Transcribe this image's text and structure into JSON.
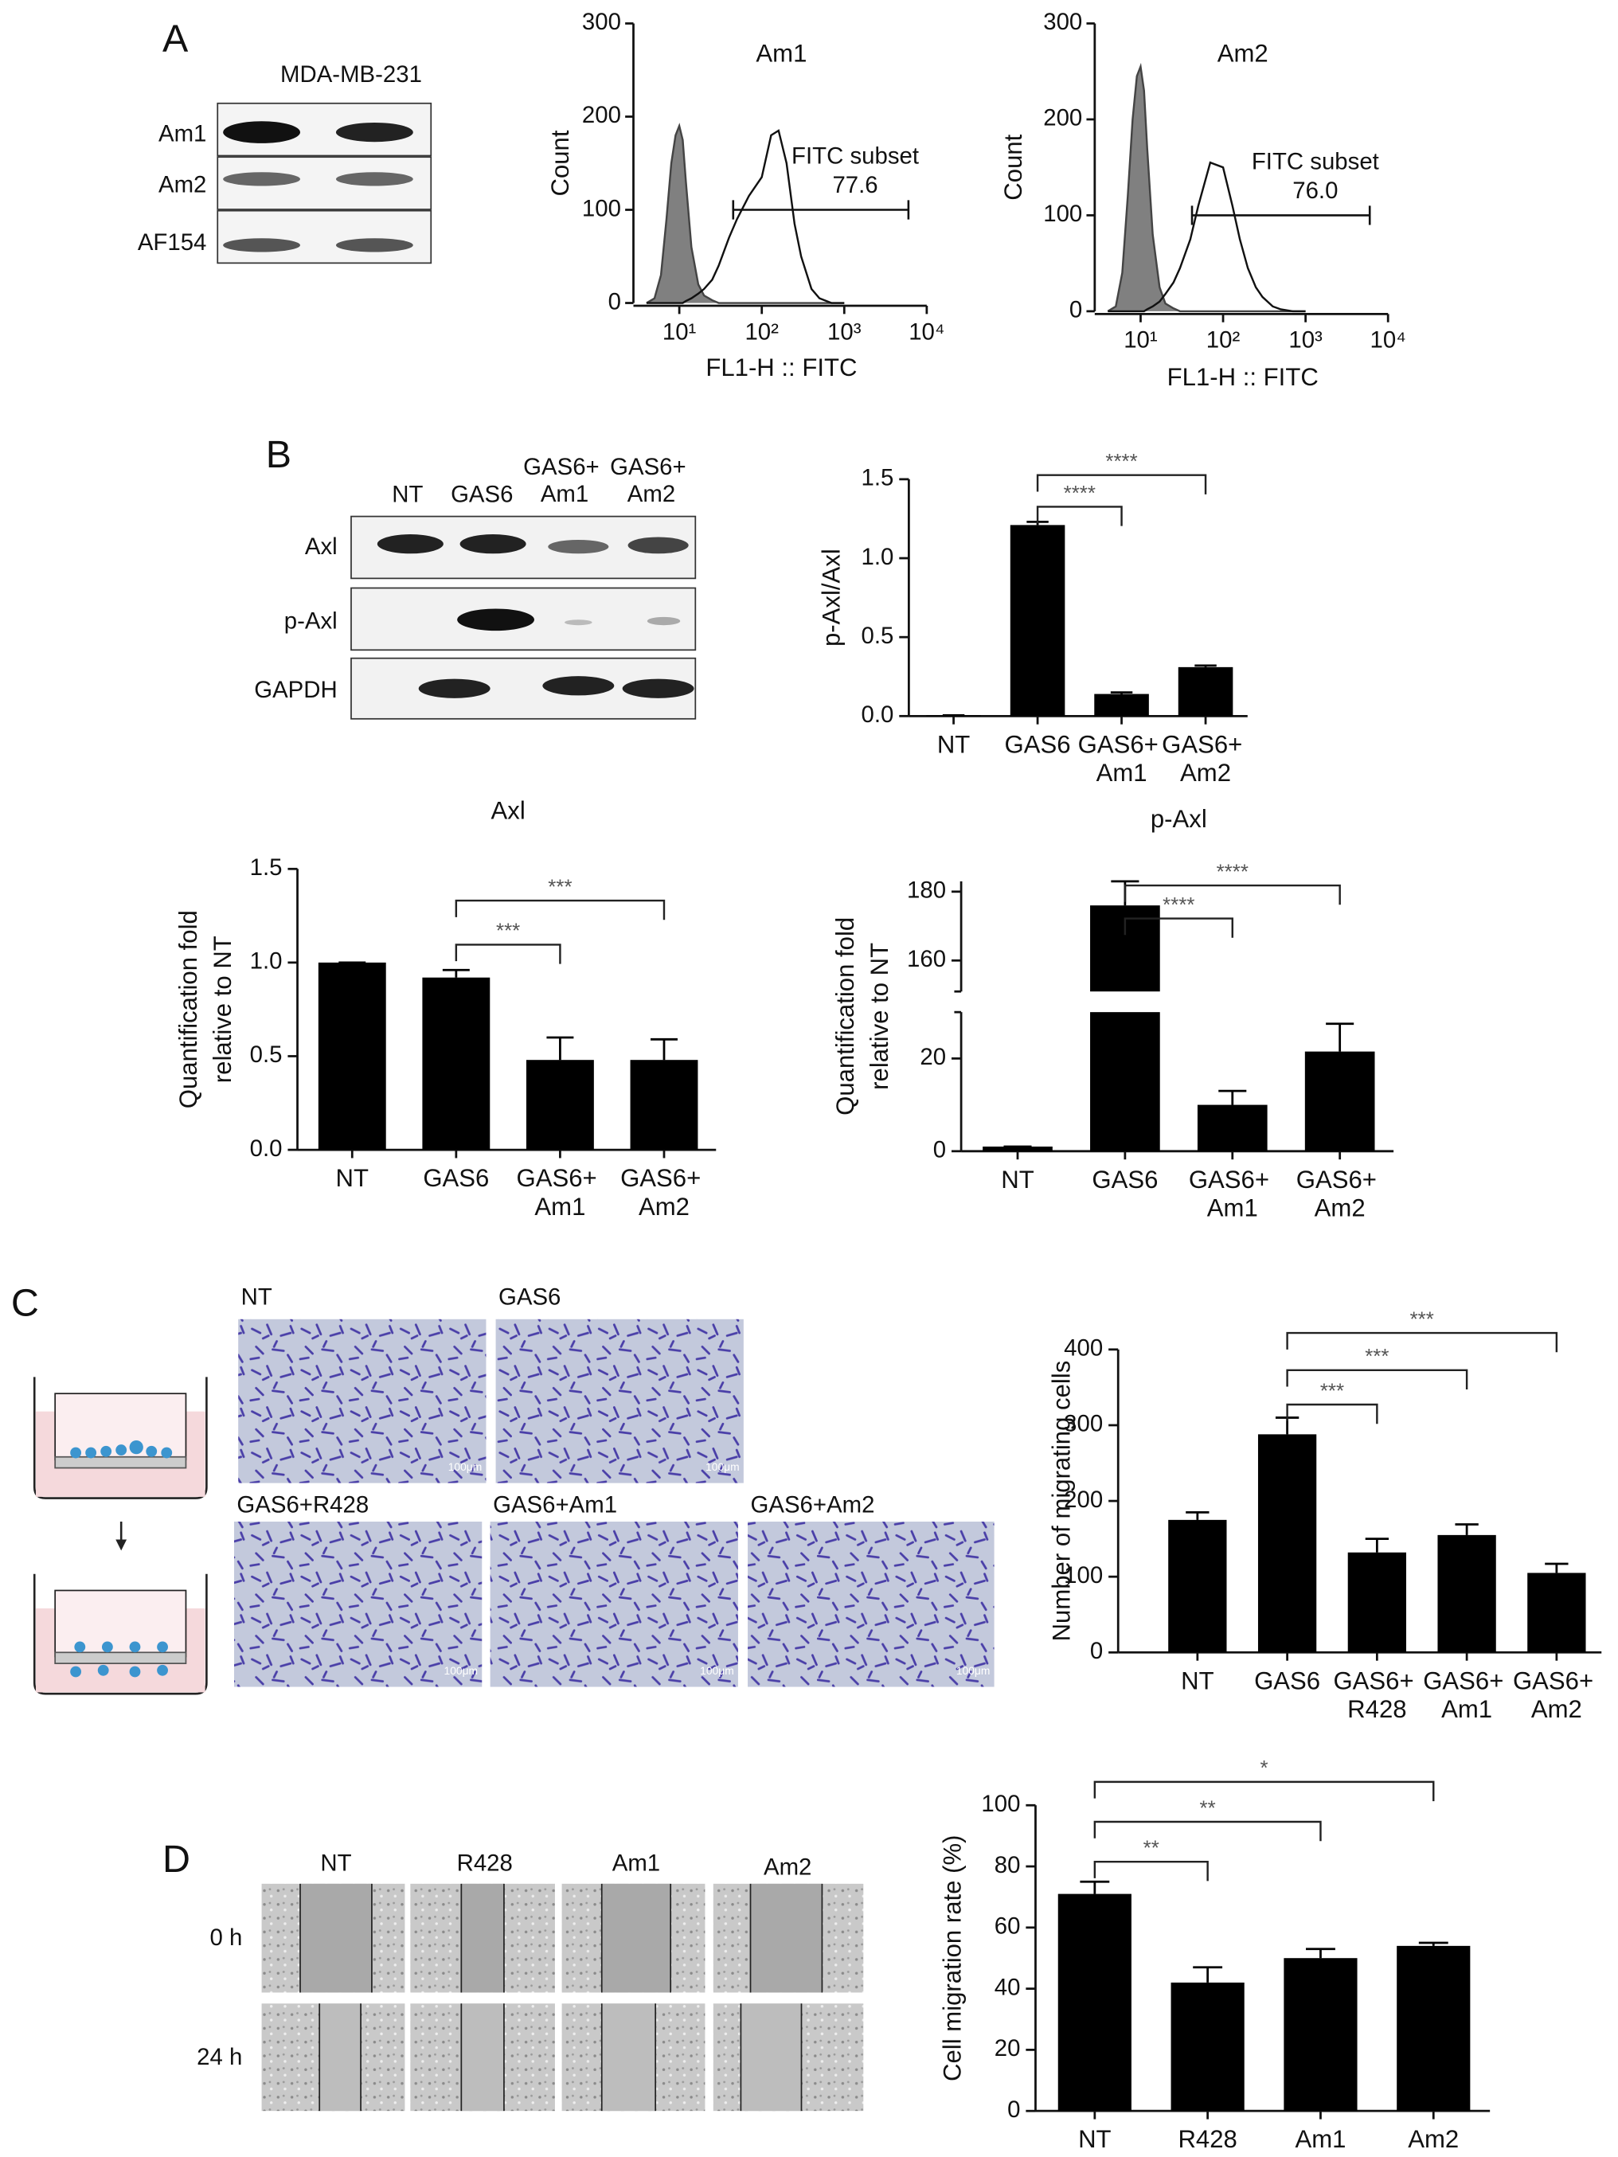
{
  "panel_labels": [
    "A",
    "B",
    "C",
    "D"
  ],
  "blot_a": {
    "title": "MDA-MB-231",
    "rows": [
      "Am1",
      "Am2",
      "AF154"
    ]
  },
  "blot_b": {
    "columns": [
      "NT",
      "GAS6",
      "GAS6+ Am1",
      "GAS6+ Am2"
    ],
    "rows": [
      "Axl",
      "p-Axl",
      "GAPDH"
    ]
  },
  "transwell_images": {
    "labels": [
      "NT",
      "GAS6",
      "GAS6+R428",
      "GAS6+Am1",
      "GAS6+Am2"
    ],
    "scale_bar": "100μm"
  },
  "wound_images": {
    "columns": [
      "NT",
      "R428",
      "Am1",
      "Am2"
    ],
    "rows": [
      "0 h",
      "24 h"
    ]
  },
  "chart_data": [
    {
      "type": "area",
      "title": "Am1",
      "xlabel": "FL1-H :: FITC",
      "ylabel": "Count",
      "xlog": true,
      "xlim": [
        3,
        10000
      ],
      "xticks": [
        {
          "value": 10,
          "label": "10¹"
        },
        {
          "value": 100,
          "label": "10²"
        },
        {
          "value": 1000,
          "label": "10³"
        },
        {
          "value": 10000,
          "label": "10⁴"
        }
      ],
      "ylim": [
        0,
        300
      ],
      "yticks": [
        0,
        100,
        200,
        300
      ],
      "x": [
        4,
        5,
        6,
        7,
        8,
        9,
        10,
        11,
        12,
        14,
        17,
        20,
        25,
        30,
        40,
        50,
        70,
        100,
        130,
        160,
        200,
        250,
        300,
        400,
        500,
        700,
        1000
      ],
      "series": [
        {
          "color": "#808080",
          "fill": true,
          "values": [
            0,
            5,
            30,
            90,
            150,
            180,
            190,
            175,
            130,
            60,
            20,
            8,
            3,
            0,
            0,
            0,
            0,
            0,
            0,
            0,
            0,
            0,
            0,
            0,
            0,
            0,
            0
          ]
        },
        {
          "color": "#111111",
          "fill": false,
          "values": [
            0,
            0,
            0,
            0,
            0,
            0,
            0,
            0,
            2,
            5,
            10,
            15,
            25,
            40,
            70,
            90,
            115,
            135,
            180,
            185,
            150,
            85,
            50,
            15,
            5,
            0,
            0
          ]
        }
      ],
      "gate": {
        "x": [
          45,
          6000
        ],
        "y": 100,
        "label": "FITC subset",
        "value": 77.6
      }
    },
    {
      "type": "area",
      "title": "Am2",
      "xlabel": "FL1-H :: FITC",
      "ylabel": "Count",
      "xlog": true,
      "xlim": [
        3,
        10000
      ],
      "xticks": [
        {
          "value": 10,
          "label": "10¹"
        },
        {
          "value": 100,
          "label": "10²"
        },
        {
          "value": 1000,
          "label": "10³"
        },
        {
          "value": 10000,
          "label": "10⁴"
        }
      ],
      "ylim": [
        0,
        300
      ],
      "yticks": [
        0,
        100,
        200,
        300
      ],
      "x": [
        4,
        5,
        6,
        7,
        8,
        9,
        10,
        11,
        12,
        14,
        17,
        20,
        25,
        30,
        40,
        50,
        70,
        100,
        130,
        160,
        200,
        250,
        300,
        400,
        500,
        700,
        1000
      ],
      "series": [
        {
          "color": "#808080",
          "fill": true,
          "values": [
            0,
            5,
            40,
            120,
            200,
            245,
            255,
            230,
            170,
            80,
            25,
            8,
            3,
            0,
            0,
            0,
            0,
            0,
            0,
            0,
            0,
            0,
            0,
            0,
            0,
            0,
            0
          ]
        },
        {
          "color": "#111111",
          "fill": false,
          "values": [
            0,
            0,
            0,
            0,
            0,
            0,
            0,
            0,
            2,
            5,
            10,
            18,
            30,
            45,
            75,
            110,
            155,
            150,
            110,
            75,
            45,
            25,
            15,
            5,
            2,
            0,
            0
          ]
        }
      ],
      "gate": {
        "x": [
          42,
          6000
        ],
        "y": 100,
        "label": "FITC subset",
        "value": 76,
        "value_label": "76.0"
      }
    },
    {
      "type": "bar",
      "ylabel": [
        "p-Axl/Axl"
      ],
      "color": "#000000",
      "categories": [
        "NT",
        "GAS6",
        "GAS6+ Am1",
        "GAS6+ Am2"
      ],
      "values": [
        0.005,
        1.21,
        0.14,
        0.31
      ],
      "errors": [
        0,
        0.02,
        0.01,
        0.01
      ],
      "ylim": [
        0,
        1.5
      ],
      "yticks": [
        {
          "value": 0,
          "label": "0.0"
        },
        0.5,
        {
          "value": 1,
          "label": "1.0"
        },
        1.5
      ],
      "significance": [
        {
          "from": "GAS6",
          "to": "GAS6+ Am1",
          "label": "****"
        },
        {
          "from": "GAS6",
          "to": "GAS6+ Am2",
          "label": "****"
        }
      ]
    },
    {
      "type": "bar",
      "title": "Axl",
      "ylabel": [
        "Quantification fold",
        "relative to NT"
      ],
      "color": "#000000",
      "categories": [
        "NT",
        "GAS6",
        "GAS6+ Am1",
        "GAS6+ Am2"
      ],
      "values": [
        1,
        0.92,
        0.48,
        0.48
      ],
      "errors": [
        0,
        0.04,
        0.12,
        0.11
      ],
      "ylim": [
        0,
        1.5
      ],
      "yticks": [
        {
          "value": 0,
          "label": "0.0"
        },
        0.5,
        {
          "value": 1,
          "label": "1.0"
        },
        1.5
      ],
      "significance": [
        {
          "from": "GAS6",
          "to": "GAS6+ Am1",
          "label": "***"
        },
        {
          "from": "GAS6",
          "to": "GAS6+ Am2",
          "label": "***"
        }
      ]
    },
    {
      "type": "bar",
      "title": "p-Axl",
      "ylabel": [
        "Quantification fold",
        "relative to NT"
      ],
      "color": "#000000",
      "categories": [
        "NT",
        "GAS6",
        "GAS6+ Am1",
        "GAS6+ Am2"
      ],
      "values": [
        1,
        176,
        10,
        21.5
      ],
      "errors": [
        0,
        7,
        3,
        6
      ],
      "ylim": [
        0,
        183
      ],
      "axis_break": [
        30,
        151
      ],
      "yticks": [
        0,
        20,
        160,
        180
      ],
      "significance": [
        {
          "from": "GAS6",
          "to": "GAS6+ Am1",
          "label": "****"
        },
        {
          "from": "GAS6",
          "to": "GAS6+ Am2",
          "label": "****"
        }
      ]
    },
    {
      "type": "bar",
      "ylabel": [
        "Number of migrating cells"
      ],
      "color": "#000000",
      "categories": [
        "NT",
        "GAS6",
        "GAS6+ R428",
        "GAS6+ Am1",
        "GAS6+ Am2"
      ],
      "values": [
        175,
        288,
        132,
        155,
        105
      ],
      "errors": [
        10,
        22,
        18,
        14,
        12
      ],
      "ylim": [
        0,
        400
      ],
      "yticks": [
        0,
        100,
        200,
        300,
        400
      ],
      "significance": [
        {
          "from": "GAS6",
          "to": "GAS6+ R428",
          "label": "***"
        },
        {
          "from": "GAS6",
          "to": "GAS6+ Am1",
          "label": "***"
        },
        {
          "from": "GAS6",
          "to": "GAS6+ Am2",
          "label": "***"
        }
      ]
    },
    {
      "type": "bar",
      "ylabel": [
        "Cell migration rate (%)"
      ],
      "color": "#000000",
      "categories": [
        "NT",
        "R428",
        "Am1",
        "Am2"
      ],
      "values": [
        71,
        42,
        50,
        54
      ],
      "errors": [
        4,
        5,
        3,
        1
      ],
      "ylim": [
        0,
        100
      ],
      "yticks": [
        0,
        20,
        40,
        60,
        80,
        100
      ],
      "significance": [
        {
          "from": "NT",
          "to": "R428",
          "label": "**"
        },
        {
          "from": "NT",
          "to": "Am1",
          "label": "**"
        },
        {
          "from": "NT",
          "to": "Am2",
          "label": "*"
        }
      ]
    }
  ]
}
